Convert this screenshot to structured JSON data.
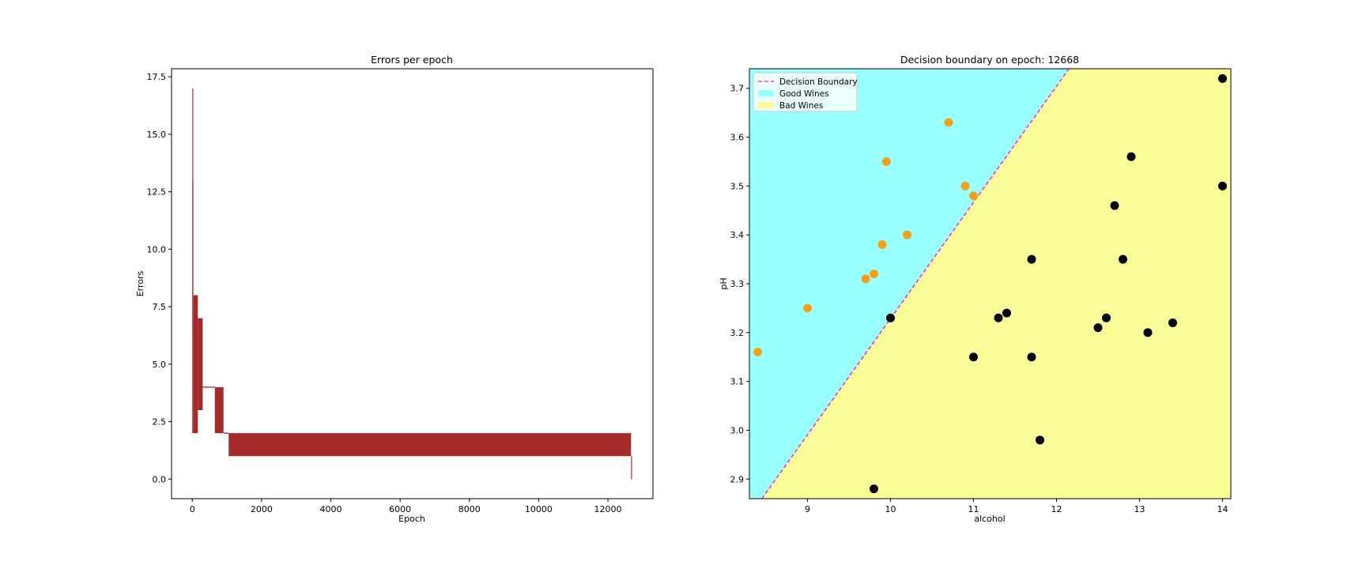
{
  "chart_data": [
    {
      "type": "line",
      "title": "Errors per epoch",
      "xlabel": "Epoch",
      "ylabel": "Errors",
      "xlim": [
        -600,
        13300
      ],
      "ylim": [
        -0.85,
        17.85
      ],
      "xticks": [
        0,
        2000,
        4000,
        6000,
        8000,
        10000,
        12000
      ],
      "xtick_labels": [
        "0",
        "2000",
        "4000",
        "6000",
        "8000",
        "10000",
        "12000"
      ],
      "yticks": [
        0.0,
        2.5,
        5.0,
        7.5,
        10.0,
        12.5,
        15.0,
        17.5
      ],
      "ytick_labels": [
        "0.0",
        "2.5",
        "5.0",
        "7.5",
        "10.0",
        "12.5",
        "15.0",
        "17.5"
      ],
      "series_color": "#a52a2a",
      "series": [
        {
          "name": "",
          "segments": [
            {
              "x": [
                0,
                3
              ],
              "y_range": [
                2,
                17
              ]
            },
            {
              "x": [
                3,
                30
              ],
              "y_range": [
                2,
                13
              ]
            },
            {
              "x": [
                30,
                160
              ],
              "y_range": [
                2,
                8
              ]
            },
            {
              "x": [
                160,
                300
              ],
              "y_range": [
                3,
                7
              ]
            },
            {
              "x": [
                300,
                650
              ],
              "y": 4
            },
            {
              "x": [
                650,
                900
              ],
              "y_range": [
                2,
                4
              ]
            },
            {
              "x": [
                900,
                1050
              ],
              "y": 2
            },
            {
              "x": [
                1050,
                12668
              ],
              "y_range": [
                1,
                2
              ]
            },
            {
              "x": [
                12668,
                12670
              ],
              "y_range": [
                0,
                1
              ]
            }
          ]
        }
      ],
      "grid": false
    },
    {
      "type": "scatter",
      "title": "Decision boundary on epoch: 12668",
      "xlabel": "alcohol",
      "ylabel": "pH",
      "xlim": [
        8.3,
        14.1
      ],
      "ylim": [
        2.86,
        3.74
      ],
      "xticks": [
        9,
        10,
        11,
        12,
        13,
        14
      ],
      "xtick_labels": [
        "9",
        "10",
        "11",
        "12",
        "13",
        "14"
      ],
      "yticks": [
        2.9,
        3.0,
        3.1,
        3.2,
        3.3,
        3.4,
        3.5,
        3.6,
        3.7
      ],
      "ytick_labels": [
        "2.9",
        "3.0",
        "3.1",
        "3.2",
        "3.3",
        "3.4",
        "3.5",
        "3.6",
        "3.7"
      ],
      "boundary": {
        "x": [
          8.45,
          12.15
        ],
        "y": [
          2.86,
          3.74
        ],
        "color": "#ff00ff",
        "style": "dashed"
      },
      "regions": {
        "good_color": "#99ffff",
        "bad_color": "#fcfc98"
      },
      "legend": {
        "placement": "top-left",
        "entries": [
          "Decision Boundary",
          "Good Wines",
          "Bad Wines"
        ]
      },
      "good_color": "#f5a01a",
      "bad_color": "#000000",
      "good_points": [
        {
          "x": 8.4,
          "y": 3.16
        },
        {
          "x": 9.0,
          "y": 3.25
        },
        {
          "x": 9.7,
          "y": 3.31
        },
        {
          "x": 9.8,
          "y": 3.32
        },
        {
          "x": 9.9,
          "y": 3.38
        },
        {
          "x": 9.95,
          "y": 3.55
        },
        {
          "x": 10.2,
          "y": 3.4
        },
        {
          "x": 10.7,
          "y": 3.63
        },
        {
          "x": 10.9,
          "y": 3.5
        },
        {
          "x": 11.0,
          "y": 3.48
        }
      ],
      "bad_points": [
        {
          "x": 9.8,
          "y": 2.88
        },
        {
          "x": 10.0,
          "y": 3.23
        },
        {
          "x": 11.0,
          "y": 3.15
        },
        {
          "x": 11.3,
          "y": 3.23
        },
        {
          "x": 11.4,
          "y": 3.24
        },
        {
          "x": 11.7,
          "y": 3.35
        },
        {
          "x": 11.7,
          "y": 3.15
        },
        {
          "x": 11.8,
          "y": 2.98
        },
        {
          "x": 12.5,
          "y": 3.21
        },
        {
          "x": 12.6,
          "y": 3.23
        },
        {
          "x": 12.7,
          "y": 3.46
        },
        {
          "x": 12.8,
          "y": 3.35
        },
        {
          "x": 12.9,
          "y": 3.56
        },
        {
          "x": 13.1,
          "y": 3.2
        },
        {
          "x": 13.4,
          "y": 3.22
        },
        {
          "x": 14.0,
          "y": 3.72
        },
        {
          "x": 14.0,
          "y": 3.5
        }
      ]
    }
  ]
}
